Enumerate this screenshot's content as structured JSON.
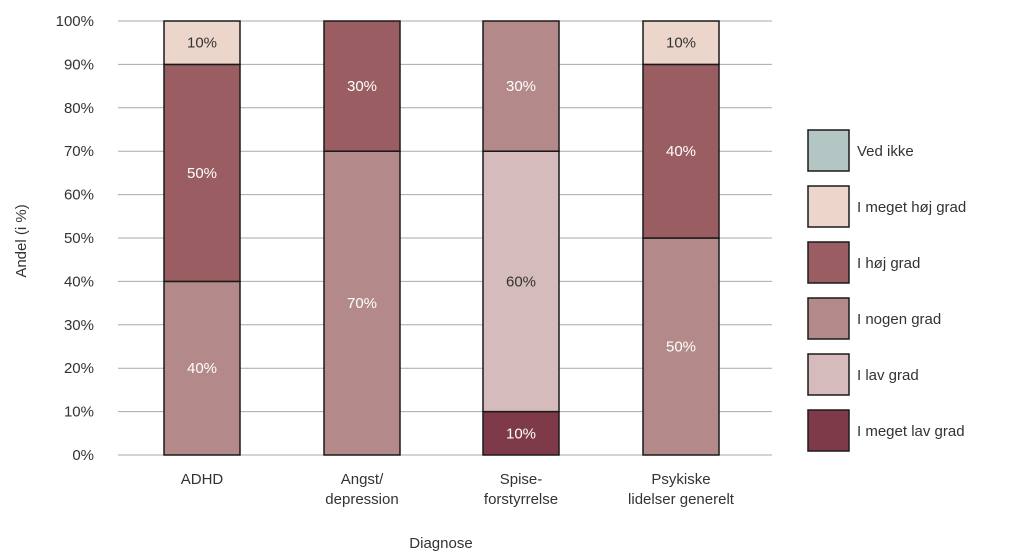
{
  "chart_data": {
    "type": "bar",
    "stacked": true,
    "xlabel": "Diagnose",
    "ylabel": "Andel (i %)",
    "ylim": [
      0,
      100
    ],
    "yticks": [
      "0%",
      "10%",
      "20%",
      "30%",
      "40%",
      "50%",
      "60%",
      "70%",
      "80%",
      "90%",
      "100%"
    ],
    "grid": true,
    "legend_position": "right",
    "categories": [
      [
        "ADHD"
      ],
      [
        "Angst/",
        "depression"
      ],
      [
        "Spise-",
        "forstyrrelse"
      ],
      [
        "Psykiske",
        "lidelser generelt"
      ]
    ],
    "series": [
      {
        "name": "I meget lav grad",
        "color": "#7e3a48",
        "label_color": "#ffffff",
        "values": [
          0,
          0,
          10,
          0
        ]
      },
      {
        "name": "I lav grad",
        "color": "#d5bbbc",
        "label_color": "#333333",
        "values": [
          0,
          0,
          60,
          0
        ]
      },
      {
        "name": "I nogen grad",
        "color": "#b38a89",
        "label_color": "#ffffff",
        "values": [
          40,
          70,
          30,
          50
        ]
      },
      {
        "name": "I høj grad",
        "color": "#9a5e62",
        "label_color": "#ffffff",
        "values": [
          50,
          30,
          0,
          40
        ]
      },
      {
        "name": "I meget høj grad",
        "color": "#ecd6cb",
        "label_color": "#333333",
        "values": [
          10,
          0,
          0,
          10
        ]
      },
      {
        "name": "Ved ikke",
        "color": "#b4c6c4",
        "label_color": "#333333",
        "values": [
          0,
          0,
          0,
          0
        ]
      }
    ],
    "data_labels": [
      [
        "",
        "",
        "10%",
        ""
      ],
      [
        "",
        "",
        "60%",
        ""
      ],
      [
        "40%",
        "70%",
        "30%",
        "50%"
      ],
      [
        "50%",
        "30%",
        "",
        "40%"
      ],
      [
        "10%",
        "",
        "",
        "10%"
      ],
      [
        "",
        "",
        "",
        ""
      ]
    ],
    "legend_order": [
      "Ved ikke",
      "I meget høj grad",
      "I høj grad",
      "I nogen grad",
      "I lav grad",
      "I meget lav grad"
    ]
  }
}
